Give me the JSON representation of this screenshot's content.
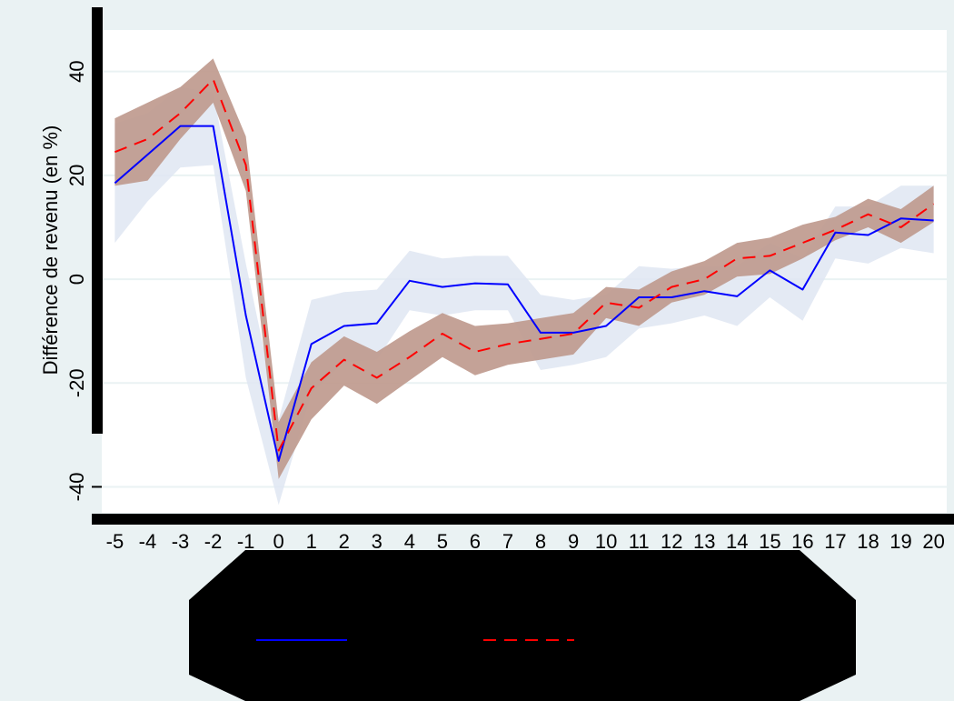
{
  "colors": {
    "outer_background": "#eaf2f3",
    "plot_background": "#ffffff",
    "gridline": "#eaf2f3",
    "series1": "#0000ff",
    "series1_band": "#dfe6f2",
    "series2": "#ff0000",
    "series2_band": "#bf9a8e",
    "legend_box": "#000000"
  },
  "chart_data": {
    "type": "line",
    "title": "",
    "xlabel": "",
    "ylabel": "Différence de revenu (en %)",
    "x": [
      -5,
      -4,
      -3,
      -2,
      -1,
      0,
      1,
      2,
      3,
      4,
      5,
      6,
      7,
      8,
      9,
      10,
      11,
      12,
      13,
      14,
      15,
      16,
      17,
      18,
      19,
      20
    ],
    "x_tick_labels": [
      "-5",
      "-4",
      "-3",
      "-2",
      "-1",
      "0",
      "1",
      "2",
      "3",
      "4",
      "5",
      "6",
      "7",
      "8",
      "9",
      "10",
      "11",
      "12",
      "13",
      "14",
      "15",
      "16",
      "17",
      "18",
      "19",
      "20"
    ],
    "xlim": [
      -5.4,
      20.4
    ],
    "ylim": [
      -45,
      48
    ],
    "y_ticks": [
      -40,
      -20,
      0,
      20,
      40
    ],
    "y_tick_labels": [
      "-40",
      "-20",
      "0",
      "20",
      "40"
    ],
    "grid": true,
    "series": [
      {
        "style": "solid",
        "values": [
          18.5,
          24,
          29.5,
          29.5,
          -7,
          -35,
          -12.5,
          -9,
          -8.5,
          -0.3,
          -1.5,
          -0.8,
          -1,
          -10.3,
          -10.3,
          -9,
          -3.5,
          -3.5,
          -2.3,
          -3.3,
          1.7,
          -2,
          9,
          8.5,
          11.7,
          11.3
        ],
        "lower": [
          7,
          15,
          21.5,
          22,
          -19,
          -43.5,
          -22,
          -16,
          -15.5,
          -6,
          -7,
          -6,
          -6,
          -17.5,
          -16.5,
          -15,
          -9.5,
          -8.5,
          -7,
          -9,
          -3.5,
          -8,
          4,
          3,
          6,
          5
        ],
        "upper": [
          30,
          32,
          37,
          36,
          3,
          -27,
          -4,
          -2.5,
          -2,
          5.5,
          4,
          4.5,
          4.5,
          -3,
          -4,
          -3,
          2.5,
          2,
          2.5,
          2.5,
          7,
          4,
          14,
          14,
          18,
          18
        ]
      },
      {
        "style": "dashed",
        "values": [
          24.5,
          27,
          32,
          38.5,
          22,
          -33,
          -21,
          -15.5,
          -19,
          -15,
          -10.5,
          -14,
          -12.5,
          -11.5,
          -10.5,
          -4.5,
          -5.5,
          -1.5,
          0,
          4,
          4.5,
          7,
          9.5,
          12.5,
          10,
          14.5
        ],
        "lower": [
          18,
          19,
          27,
          34,
          17,
          -38.5,
          -27,
          -20.5,
          -24,
          -19.5,
          -15,
          -18.5,
          -16.5,
          -15.5,
          -14.5,
          -7.5,
          -9,
          -4.5,
          -3,
          0.5,
          1,
          4,
          7.5,
          10,
          7,
          11
        ],
        "upper": [
          31,
          34,
          37,
          42.5,
          27.5,
          -27.5,
          -16,
          -11,
          -14,
          -10,
          -6.5,
          -9,
          -8.5,
          -7.5,
          -6.5,
          -1.5,
          -2,
          1.5,
          3.5,
          7,
          8,
          10.5,
          12,
          15.5,
          13.5,
          18
        ]
      }
    ],
    "legend": {
      "placement": "bottom",
      "entries": [
        "",
        ""
      ]
    }
  }
}
